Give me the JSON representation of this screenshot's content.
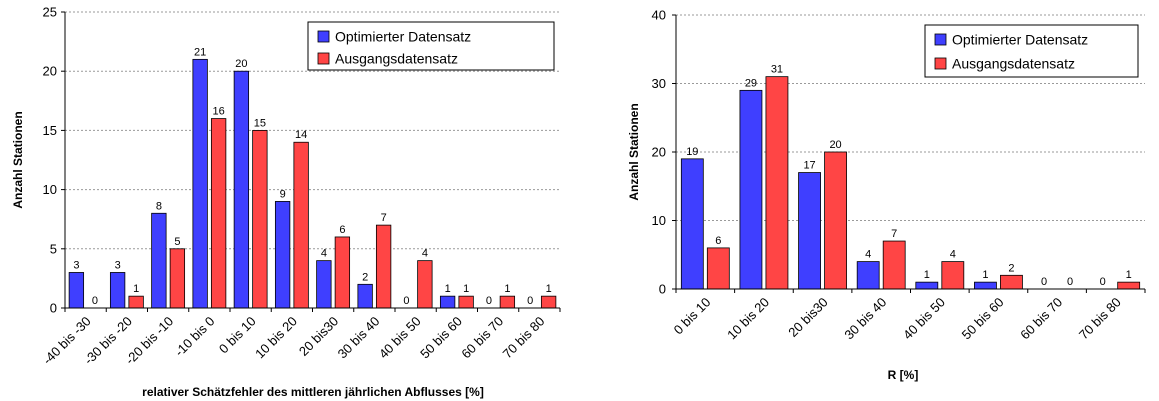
{
  "colors": {
    "optimized": "#3f3fff",
    "original": "#ff4545",
    "grid": "#9a9a9a",
    "axis": "#000000"
  },
  "chart_data": [
    {
      "type": "bar",
      "categories": [
        "-40 bis -30",
        "-30 bis -20",
        "-20 bis -10",
        "-10 bis 0",
        "0 bis 10",
        "10 bis 20",
        "20 bis30",
        "30 bis 40",
        "40 bis 50",
        "50 bis 60",
        "60 bis 70",
        "70 bis 80"
      ],
      "series": [
        {
          "name": "Optimierter Datensatz",
          "values": [
            3,
            3,
            8,
            21,
            20,
            9,
            4,
            2,
            0,
            1,
            0,
            0
          ]
        },
        {
          "name": "Ausgangsdatensatz",
          "values": [
            0,
            1,
            5,
            16,
            15,
            14,
            6,
            7,
            4,
            1,
            1,
            1
          ]
        }
      ],
      "xlabel": "relativer Schätzfehler des mittleren jährlichen Abflusses [%]",
      "ylabel": "Anzahl Stationen",
      "ylim": [
        0,
        25
      ],
      "yticks": [
        "0",
        "5",
        "10",
        "15",
        "20",
        "25"
      ],
      "grid": true,
      "legend": "top-right"
    },
    {
      "type": "bar",
      "categories": [
        "0 bis 10",
        "10 bis 20",
        "20 bis30",
        "30 bis 40",
        "40 bis 50",
        "50 bis 60",
        "60 bis 70",
        "70 bis 80"
      ],
      "series": [
        {
          "name": "Optimierter Datensatz",
          "values": [
            19,
            29,
            17,
            4,
            1,
            1,
            0,
            0
          ]
        },
        {
          "name": "Ausgangsdatensatz",
          "values": [
            6,
            31,
            20,
            7,
            4,
            2,
            0,
            1
          ]
        }
      ],
      "xlabel": "R [%]",
      "ylabel": "Anzahl Stationen",
      "ylim": [
        0,
        40
      ],
      "yticks": [
        "0",
        "10",
        "20",
        "30",
        "40"
      ],
      "grid": true,
      "legend": "top-right"
    }
  ]
}
